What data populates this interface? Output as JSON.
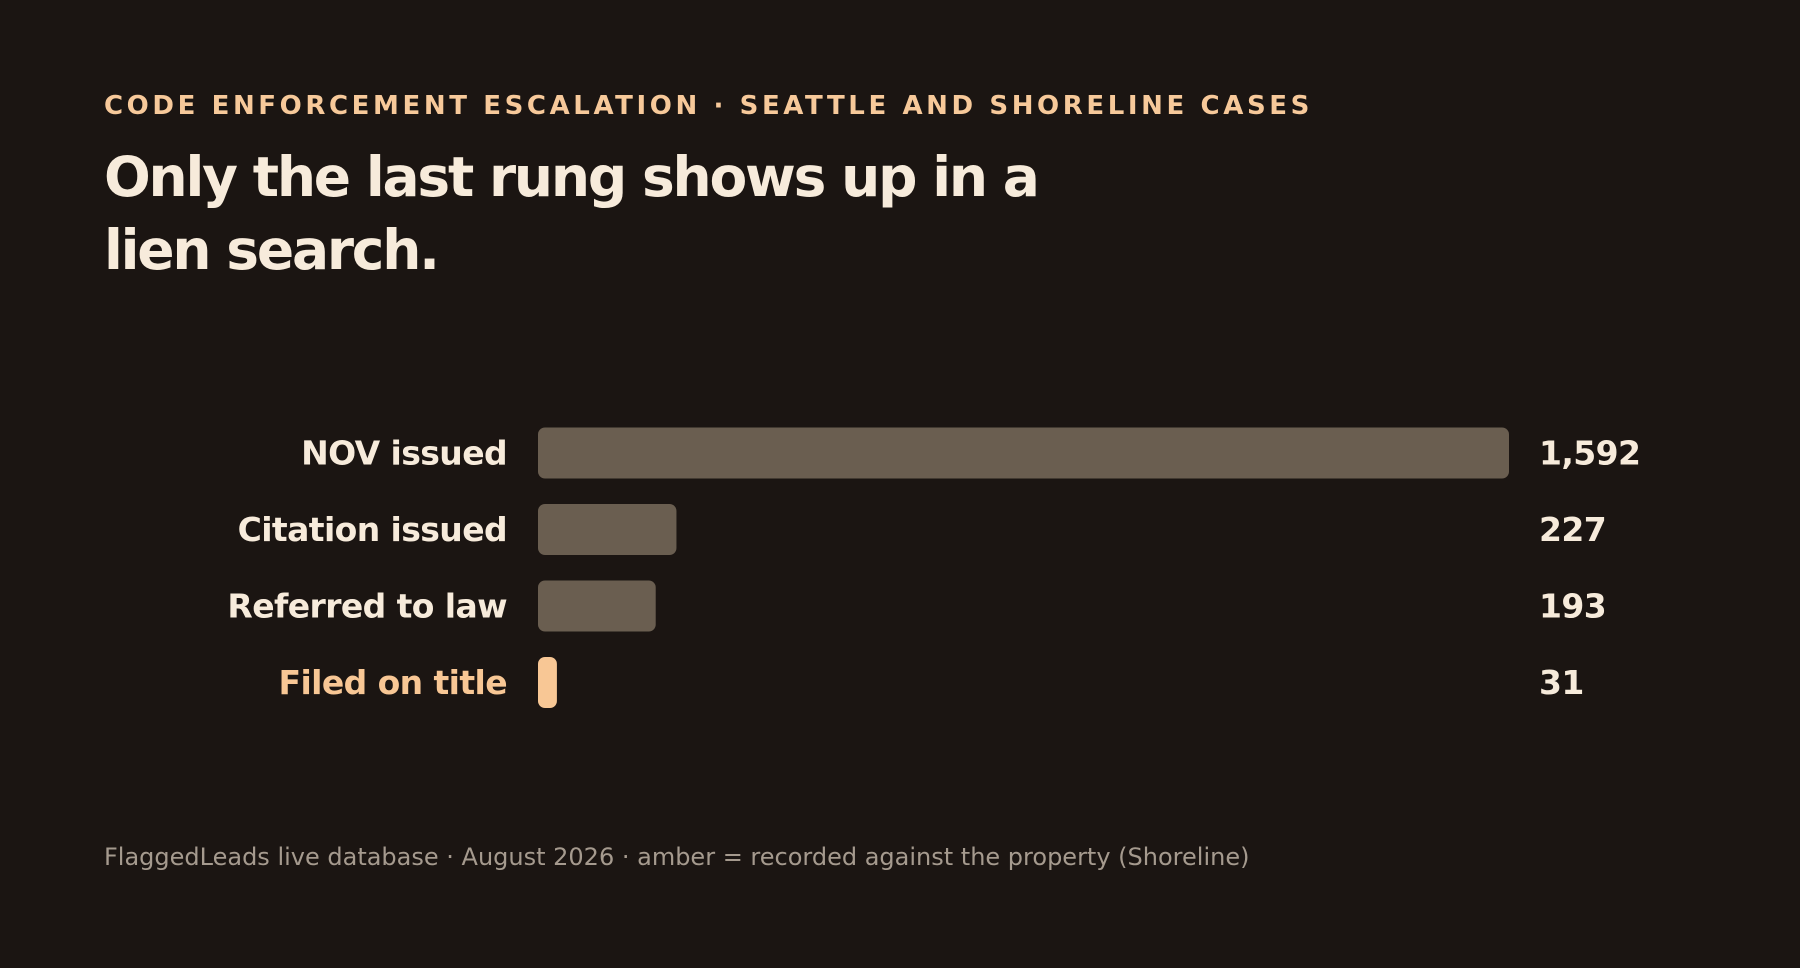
{
  "header": {
    "eyebrow": "CODE ENFORCEMENT ESCALATION · SEATTLE AND SHORELINE CASES",
    "title": "Only the last rung shows up in a lien search."
  },
  "chart_data": {
    "type": "bar",
    "orientation": "horizontal",
    "categories": [
      "NOV issued",
      "Citation issued",
      "Referred to law",
      "Filed on title"
    ],
    "values": [
      1592,
      227,
      193,
      31
    ],
    "value_labels": [
      "1,592",
      "227",
      "193",
      "31"
    ],
    "highlighted": [
      false,
      false,
      false,
      true
    ],
    "xlim": [
      0,
      1592
    ],
    "grid": false,
    "legend": "none"
  },
  "footnote": "FlaggedLeads live database · August 2026 · amber = recorded against the property (Shoreline)",
  "colors": {
    "background": "#1b1512",
    "bar": "#6a5e50",
    "highlight": "#f8c795",
    "label": "#f7ebdb",
    "muted": "#a59a8e"
  }
}
